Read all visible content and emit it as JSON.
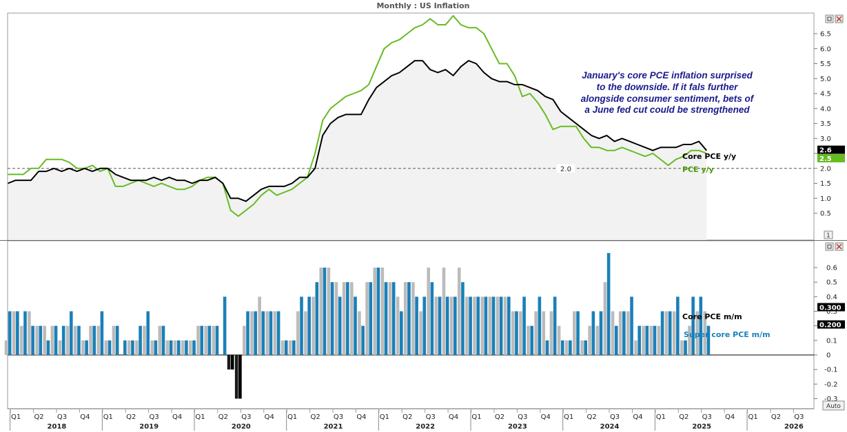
{
  "window": {
    "title": "Monthly : US Inflation",
    "auto_label": "Auto",
    "pane_index_label": "1"
  },
  "colors": {
    "core_pce": "#000000",
    "pce": "#66bb22",
    "core_mm": "#bbbbbb",
    "super_core_mm": "#1a80b8",
    "reference_line": "#777777",
    "annotation": "#1a1a8c"
  },
  "chart_data": [
    {
      "type": "line",
      "x_start": "2017-11",
      "x_step": "month",
      "ylim": [
        0.2,
        7.2
      ],
      "yticks": [
        "0.5",
        "1.0",
        "1.5",
        "2.0",
        "2.5",
        "3.0",
        "3.5",
        "4.0",
        "4.5",
        "5.0",
        "5.5",
        "6.0",
        "6.5"
      ],
      "reference_line": {
        "value": 2.0,
        "label": "2.0"
      },
      "annotation": [
        "January's core PCE inflation surprised",
        "to the downside. If it fals further",
        "alongside consumer sentiment, bets of",
        "a June fed cut could be strengthened"
      ],
      "series": [
        {
          "name": "Core PCE y/y",
          "last_value_label": "2.6",
          "values": [
            1.5,
            1.6,
            1.6,
            1.6,
            1.9,
            1.9,
            2.0,
            1.9,
            2.0,
            1.9,
            2.0,
            1.9,
            2.0,
            2.0,
            1.8,
            1.7,
            1.6,
            1.6,
            1.6,
            1.7,
            1.6,
            1.7,
            1.6,
            1.6,
            1.5,
            1.6,
            1.6,
            1.7,
            1.5,
            1.0,
            1.0,
            0.9,
            1.1,
            1.3,
            1.4,
            1.4,
            1.4,
            1.5,
            1.7,
            1.7,
            2.0,
            3.1,
            3.5,
            3.7,
            3.8,
            3.8,
            3.8,
            4.3,
            4.7,
            4.9,
            5.1,
            5.2,
            5.4,
            5.6,
            5.6,
            5.3,
            5.2,
            5.3,
            5.1,
            5.4,
            5.6,
            5.5,
            5.2,
            5.0,
            4.9,
            4.9,
            4.8,
            4.8,
            4.7,
            4.6,
            4.4,
            4.3,
            3.9,
            3.7,
            3.5,
            3.3,
            3.1,
            3.0,
            3.1,
            2.9,
            3.0,
            2.9,
            2.8,
            2.7,
            2.6,
            2.7,
            2.7,
            2.7,
            2.8,
            2.8,
            2.9,
            2.6
          ]
        },
        {
          "name": "PCE y/y",
          "last_value_label": "2.5",
          "values": [
            1.8,
            1.8,
            1.8,
            2.0,
            2.0,
            2.3,
            2.3,
            2.3,
            2.2,
            2.0,
            2.0,
            2.1,
            1.9,
            2.0,
            1.4,
            1.4,
            1.5,
            1.6,
            1.5,
            1.4,
            1.5,
            1.4,
            1.3,
            1.3,
            1.4,
            1.6,
            1.7,
            1.7,
            1.5,
            0.6,
            0.4,
            0.6,
            0.8,
            1.1,
            1.3,
            1.1,
            1.2,
            1.3,
            1.5,
            1.7,
            2.5,
            3.6,
            4.0,
            4.2,
            4.4,
            4.5,
            4.6,
            4.8,
            5.4,
            6.0,
            6.2,
            6.3,
            6.5,
            6.7,
            6.8,
            7.0,
            6.8,
            6.8,
            7.1,
            6.8,
            6.7,
            6.7,
            6.5,
            6.0,
            5.5,
            5.5,
            5.1,
            4.4,
            4.5,
            4.2,
            3.8,
            3.3,
            3.4,
            3.4,
            3.4,
            3.0,
            2.7,
            2.7,
            2.6,
            2.6,
            2.7,
            2.6,
            2.5,
            2.4,
            2.5,
            2.3,
            2.1,
            2.3,
            2.4,
            2.6,
            2.6,
            2.5
          ]
        }
      ]
    },
    {
      "type": "bar",
      "x_start": "2017-11",
      "x_step": "month",
      "ylim": [
        -0.37,
        0.72
      ],
      "yticks": [
        "-0.3",
        "-0.2",
        "-0.1",
        "0",
        "0.1",
        "0.2",
        "0.3",
        "0.4",
        "0.5",
        "0.6"
      ],
      "series": [
        {
          "name": "Core PCE m/m",
          "last_value_label": "0.300",
          "values": [
            0.1,
            0.3,
            0.2,
            0.3,
            0.2,
            0.2,
            0.2,
            0.1,
            0.2,
            0.2,
            0.1,
            0.2,
            0.2,
            0.1,
            0.2,
            0.0,
            0.1,
            0.1,
            0.2,
            0.1,
            0.2,
            0.1,
            0.1,
            0.1,
            0.1,
            0.2,
            0.2,
            0.2,
            0.0,
            -0.1,
            -0.3,
            0.2,
            0.3,
            0.4,
            0.3,
            0.3,
            0.1,
            0.1,
            0.3,
            0.3,
            0.4,
            0.6,
            0.6,
            0.5,
            0.5,
            0.5,
            0.3,
            0.5,
            0.6,
            0.6,
            0.5,
            0.4,
            0.5,
            0.5,
            0.3,
            0.6,
            0.4,
            0.6,
            0.4,
            0.6,
            0.4,
            0.4,
            0.4,
            0.4,
            0.4,
            0.4,
            0.3,
            0.3,
            0.2,
            0.3,
            0.3,
            0.3,
            0.2,
            0.1,
            0.3,
            0.1,
            0.2,
            0.2,
            0.5,
            0.3,
            0.3,
            0.3,
            0.1,
            0.2,
            0.2,
            0.2,
            0.3,
            0.3,
            0.1,
            0.2,
            0.3,
            0.3
          ]
        },
        {
          "name": "Super core PCE m/m",
          "last_value_label": "0.200",
          "values": [
            0.3,
            0.3,
            0.3,
            0.2,
            0.2,
            0.1,
            0.2,
            0.2,
            0.3,
            0.2,
            0.1,
            0.2,
            0.3,
            0.1,
            0.2,
            0.1,
            0.1,
            0.2,
            0.3,
            0.1,
            0.2,
            0.1,
            0.1,
            0.1,
            0.1,
            0.2,
            0.2,
            0.2,
            0.4,
            -0.1,
            -0.3,
            0.3,
            0.3,
            0.3,
            0.3,
            0.3,
            0.1,
            0.1,
            0.4,
            0.4,
            0.5,
            0.6,
            0.5,
            0.4,
            0.5,
            0.4,
            0.2,
            0.5,
            0.6,
            0.5,
            0.5,
            0.3,
            0.5,
            0.4,
            0.4,
            0.5,
            0.4,
            0.4,
            0.4,
            0.5,
            0.4,
            0.4,
            0.4,
            0.4,
            0.4,
            0.4,
            0.3,
            0.4,
            0.2,
            0.4,
            0.1,
            0.4,
            0.1,
            0.1,
            0.3,
            0.1,
            0.3,
            0.3,
            0.7,
            0.2,
            0.3,
            0.4,
            0.2,
            0.2,
            0.2,
            0.3,
            0.3,
            0.4,
            0.1,
            0.4,
            0.4,
            0.2
          ]
        }
      ]
    }
  ],
  "x_axis": {
    "quarters": [
      "Q1",
      "Q2",
      "Q3",
      "Q4"
    ],
    "years": [
      "2018",
      "2019",
      "2020",
      "2021",
      "2022",
      "2023",
      "2024",
      "2025",
      "2026"
    ],
    "last_year_quarters": 3
  }
}
